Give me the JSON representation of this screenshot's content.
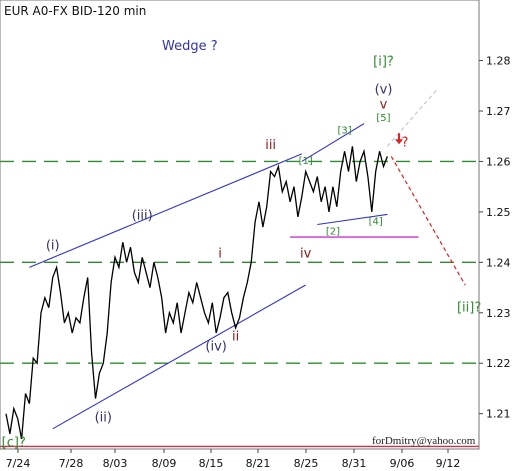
{
  "chart_data": {
    "type": "line",
    "title": "EUR A0-FX BID-120 min",
    "subtitle": "Wedge ?",
    "footer": "forDmitry@yahoo.com",
    "ylim": [
      1.203,
      1.292
    ],
    "y_ticks": [
      "1.21",
      "1.22",
      "1.23",
      "1.24",
      "1.25",
      "1.26",
      "1.27",
      "1.28"
    ],
    "x_ticks": [
      "7/24",
      "7/28",
      "8/03",
      "8/09",
      "8/15",
      "8/21",
      "8/25",
      "8/31",
      "9/06",
      "9/12"
    ],
    "price_path": [
      [
        0,
        1.21
      ],
      [
        2,
        1.206
      ],
      [
        4,
        1.211
      ],
      [
        6,
        1.209
      ],
      [
        8,
        1.205
      ],
      [
        10,
        1.214
      ],
      [
        12,
        1.212
      ],
      [
        14,
        1.221
      ],
      [
        16,
        1.22
      ],
      [
        18,
        1.23
      ],
      [
        20,
        1.233
      ],
      [
        22,
        1.231
      ],
      [
        24,
        1.237
      ],
      [
        26,
        1.239
      ],
      [
        28,
        1.234
      ],
      [
        30,
        1.228
      ],
      [
        32,
        1.23
      ],
      [
        34,
        1.226
      ],
      [
        36,
        1.229
      ],
      [
        38,
        1.228
      ],
      [
        40,
        1.233
      ],
      [
        42,
        1.237
      ],
      [
        44,
        1.222
      ],
      [
        46,
        1.213
      ],
      [
        48,
        1.218
      ],
      [
        50,
        1.22
      ],
      [
        52,
        1.226
      ],
      [
        54,
        1.236
      ],
      [
        56,
        1.241
      ],
      [
        58,
        1.239
      ],
      [
        60,
        1.244
      ],
      [
        62,
        1.24
      ],
      [
        64,
        1.243
      ],
      [
        66,
        1.238
      ],
      [
        68,
        1.236
      ],
      [
        70,
        1.241
      ],
      [
        72,
        1.238
      ],
      [
        74,
        1.235
      ],
      [
        76,
        1.24
      ],
      [
        78,
        1.237
      ],
      [
        80,
        1.233
      ],
      [
        82,
        1.226
      ],
      [
        84,
        1.23
      ],
      [
        86,
        1.228
      ],
      [
        88,
        1.232
      ],
      [
        90,
        1.226
      ],
      [
        92,
        1.23
      ],
      [
        94,
        1.234
      ],
      [
        96,
        1.232
      ],
      [
        98,
        1.236
      ],
      [
        100,
        1.233
      ],
      [
        102,
        1.23
      ],
      [
        104,
        1.228
      ],
      [
        106,
        1.232
      ],
      [
        108,
        1.226
      ],
      [
        110,
        1.229
      ],
      [
        112,
        1.233
      ],
      [
        114,
        1.234
      ],
      [
        116,
        1.23
      ],
      [
        118,
        1.227
      ],
      [
        120,
        1.229
      ],
      [
        122,
        1.233
      ],
      [
        124,
        1.236
      ],
      [
        126,
        1.24
      ],
      [
        128,
        1.248
      ],
      [
        130,
        1.252
      ],
      [
        132,
        1.247
      ],
      [
        134,
        1.251
      ],
      [
        136,
        1.258
      ],
      [
        138,
        1.257
      ],
      [
        140,
        1.259
      ],
      [
        142,
        1.254
      ],
      [
        144,
        1.256
      ],
      [
        146,
        1.252
      ],
      [
        148,
        1.255
      ],
      [
        150,
        1.249
      ],
      [
        152,
        1.253
      ],
      [
        154,
        1.258
      ],
      [
        156,
        1.256
      ],
      [
        158,
        1.254
      ],
      [
        160,
        1.257
      ],
      [
        162,
        1.252
      ],
      [
        164,
        1.255
      ],
      [
        166,
        1.25
      ],
      [
        168,
        1.255
      ],
      [
        170,
        1.251
      ],
      [
        172,
        1.258
      ],
      [
        174,
        1.262
      ],
      [
        176,
        1.258
      ],
      [
        178,
        1.263
      ],
      [
        180,
        1.256
      ],
      [
        182,
        1.26
      ],
      [
        184,
        1.262
      ],
      [
        186,
        1.257
      ],
      [
        188,
        1.25
      ],
      [
        190,
        1.258
      ],
      [
        192,
        1.262
      ],
      [
        194,
        1.259
      ],
      [
        196,
        1.261
      ]
    ],
    "horizontal_levels": [
      {
        "y": 1.26,
        "style": "dashed",
        "color": "#2e8b2e"
      },
      {
        "y": 1.24,
        "style": "dashed",
        "color": "#2e8b2e"
      },
      {
        "y": 1.22,
        "style": "dashed",
        "color": "#2e8b2e"
      },
      {
        "y": 1.2035,
        "style": "solid",
        "color": "#cc3344"
      },
      {
        "y": 1.245,
        "style": "solid",
        "color": "#cc33cc",
        "segment": [
          146,
          212
        ]
      }
    ],
    "wave_labels": [
      {
        "text": "[c]?",
        "x": 4,
        "y": 1.2035,
        "color": "#2e8b2e"
      },
      {
        "text": "(i)",
        "x": 24,
        "y": 1.2425,
        "color": "#33336b"
      },
      {
        "text": "(ii)",
        "x": 50,
        "y": 1.2085,
        "color": "#33336b"
      },
      {
        "text": "(iii)",
        "x": 70,
        "y": 1.2485,
        "color": "#33336b"
      },
      {
        "text": "i",
        "x": 110,
        "y": 1.241,
        "color": "#8b1a1a"
      },
      {
        "text": "(iv)",
        "x": 108,
        "y": 1.2225,
        "color": "#33336b"
      },
      {
        "text": "ii",
        "x": 118,
        "y": 1.2245,
        "color": "#8b1a1a"
      },
      {
        "text": "iii",
        "x": 136,
        "y": 1.2625,
        "color": "#8b1a1a"
      },
      {
        "text": "[1]",
        "x": 154,
        "y": 1.2595,
        "color": "#2e8b2e"
      },
      {
        "text": "iv",
        "x": 154,
        "y": 1.241,
        "color": "#8b1a1a"
      },
      {
        "text": "[2]",
        "x": 168,
        "y": 1.2455,
        "color": "#2e8b2e"
      },
      {
        "text": "[3]",
        "x": 174,
        "y": 1.2655,
        "color": "#2e8b2e"
      },
      {
        "text": "[4]",
        "x": 190,
        "y": 1.2475,
        "color": "#2e8b2e"
      },
      {
        "text": "[5]",
        "x": 194,
        "y": 1.268,
        "color": "#2e8b2e"
      },
      {
        "text": "v",
        "x": 194,
        "y": 1.2705,
        "color": "#8b1a1a"
      },
      {
        "text": "(v)",
        "x": 194,
        "y": 1.2735,
        "color": "#33336b"
      },
      {
        "text": "[i]?",
        "x": 194,
        "y": 1.279,
        "color": "#2e8b2e"
      },
      {
        "text": "?",
        "x": 205,
        "y": 1.263,
        "color": "#cc2222"
      },
      {
        "text": "[ii]?",
        "x": 238,
        "y": 1.2303,
        "color": "#2e8b2e"
      }
    ],
    "trend_lines": [
      {
        "from": [
          12,
          1.239
        ],
        "to": [
          152,
          1.2615
        ],
        "color": "#3333cc"
      },
      {
        "from": [
          24,
          1.207
        ],
        "to": [
          154,
          1.2355
        ],
        "color": "#3333cc"
      },
      {
        "from": [
          152,
          1.26
        ],
        "to": [
          184,
          1.2675
        ],
        "color": "#3333cc"
      },
      {
        "from": [
          160,
          1.2475
        ],
        "to": [
          196,
          1.2495
        ],
        "color": "#3333cc"
      }
    ],
    "projections": [
      {
        "from": [
          196,
          1.263
        ],
        "to": [
          222,
          1.2745
        ],
        "color": "#c8c8c8",
        "style": "dashed"
      },
      {
        "from": [
          198,
          1.261
        ],
        "to": [
          236,
          1.2355
        ],
        "color": "#dd2222",
        "style": "dashed"
      }
    ],
    "arrow": {
      "x": 202,
      "y": 1.264,
      "color": "#dd2222"
    }
  }
}
